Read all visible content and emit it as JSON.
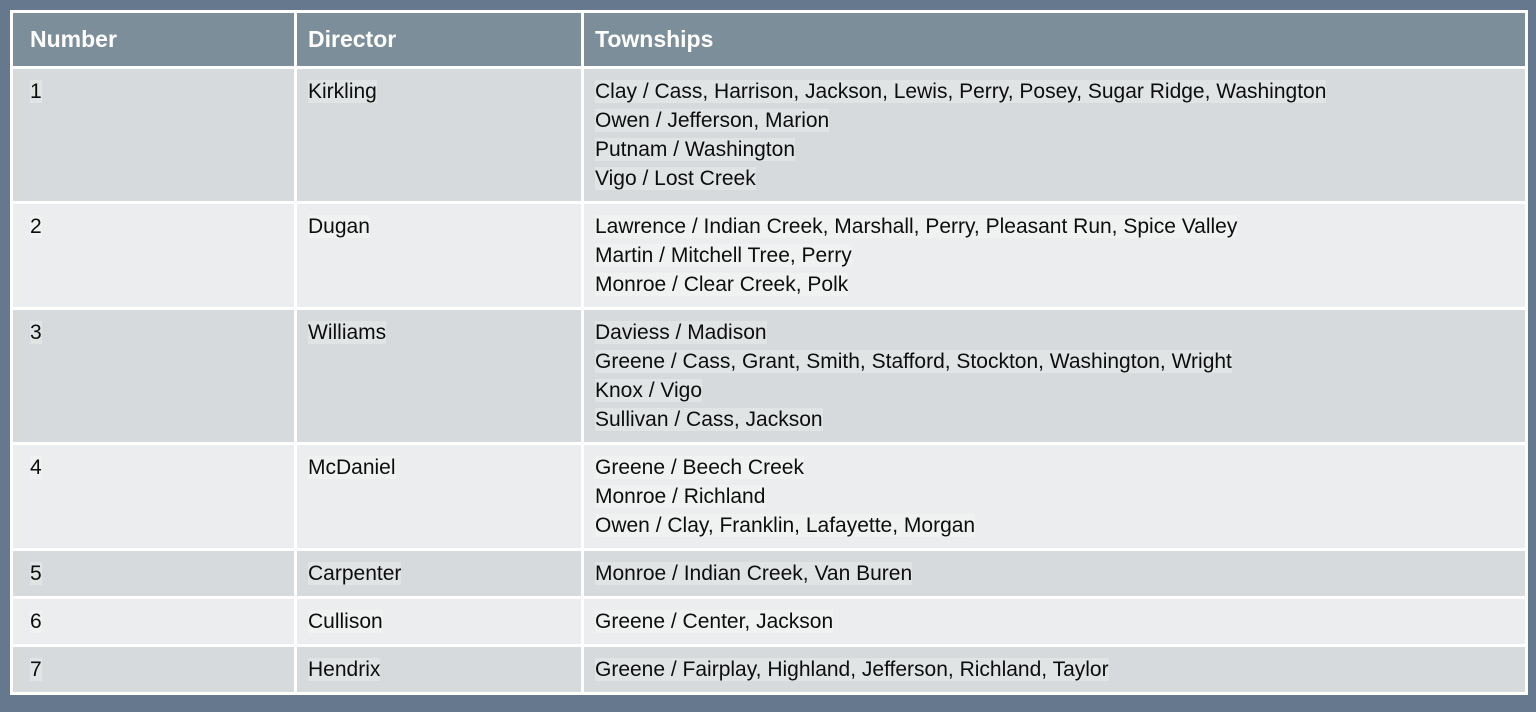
{
  "table": {
    "columns": [
      {
        "key": "number",
        "label": "Number"
      },
      {
        "key": "director",
        "label": "Director"
      },
      {
        "key": "townships",
        "label": "Townships"
      }
    ],
    "rows": [
      {
        "number": "1",
        "director": "Kirkling",
        "townships": [
          "Clay / Cass, Harrison, Jackson, Lewis, Perry, Posey, Sugar Ridge, Washington",
          "Owen / Jefferson, Marion",
          "Putnam / Washington",
          "Vigo / Lost Creek"
        ]
      },
      {
        "number": "2",
        "director": "Dugan",
        "townships": [
          "Lawrence / Indian Creek, Marshall, Perry, Pleasant Run, Spice Valley",
          "Martin / Mitchell Tree, Perry",
          "Monroe / Clear Creek, Polk"
        ]
      },
      {
        "number": "3",
        "director": "Williams",
        "townships": [
          "Daviess / Madison",
          "Greene / Cass, Grant, Smith, Stafford, Stockton, Washington, Wright",
          "Knox / Vigo",
          "Sullivan / Cass, Jackson"
        ]
      },
      {
        "number": "4",
        "director": "McDaniel",
        "townships": [
          "Greene / Beech Creek",
          "Monroe / Richland",
          "Owen / Clay, Franklin, Lafayette, Morgan"
        ]
      },
      {
        "number": "5",
        "director": "Carpenter",
        "townships": [
          "Monroe / Indian Creek, Van Buren"
        ]
      },
      {
        "number": "6",
        "director": "Cullison",
        "townships": [
          "Greene / Center, Jackson"
        ]
      },
      {
        "number": "7",
        "director": "Hendrix",
        "townships": [
          "Greene / Fairplay, Highland, Jefferson, Richland, Taylor"
        ]
      }
    ]
  },
  "colors": {
    "frame": "#66788e",
    "header_bg": "#7d8e9b",
    "header_text": "#ffffff",
    "row_odd": "#d6dadc",
    "row_even": "#ebedee",
    "grid": "#ffffff",
    "body_text": "#0d0d0d"
  }
}
